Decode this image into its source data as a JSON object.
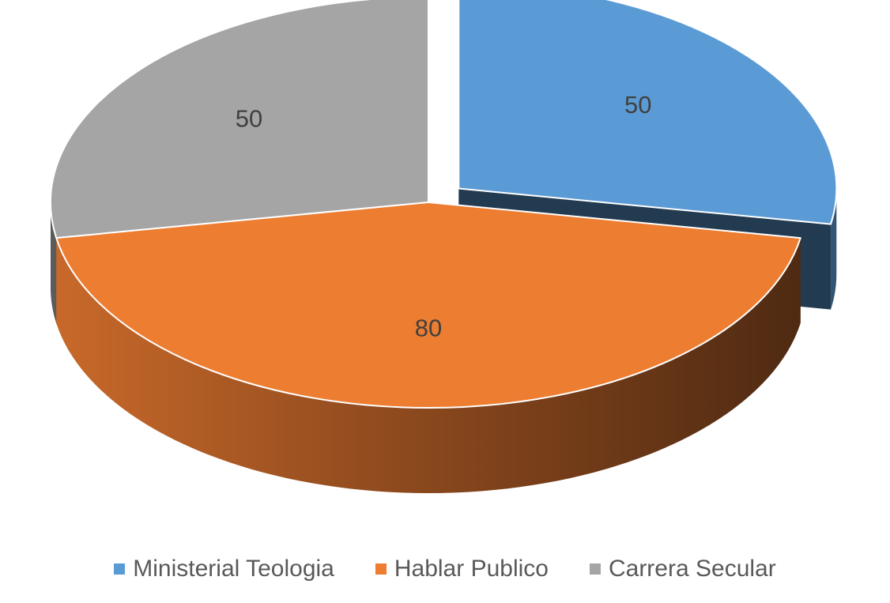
{
  "chart_data": {
    "type": "pie",
    "categories": [
      "Ministerial Teologia",
      "Hablar Publico",
      "Carrera Secular"
    ],
    "values": [
      50,
      80,
      50
    ],
    "data_labels": [
      "50",
      "80",
      "50"
    ],
    "colors": [
      "#5B9BD5",
      "#ED7D31",
      "#A5A5A5"
    ],
    "exploded": [
      "Ministerial Teologia"
    ],
    "style": "3d",
    "legend_position": "bottom",
    "title": ""
  },
  "legend": {
    "items": [
      {
        "label": "Ministerial Teologia",
        "color": "#5B9BD5"
      },
      {
        "label": "Hablar Publico",
        "color": "#ED7D31"
      },
      {
        "label": "Carrera Secular",
        "color": "#A5A5A5"
      }
    ]
  }
}
